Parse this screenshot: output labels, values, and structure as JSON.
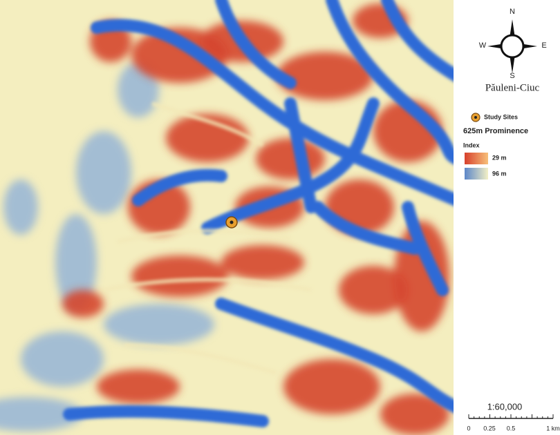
{
  "compass": {
    "north": "N",
    "west": "W",
    "east": "E",
    "south": "S"
  },
  "title": "Păuleni-Ciuc",
  "legend": {
    "site": "Study Sites",
    "heading": "625m Prominence",
    "subheading": "Index",
    "high": "29 m",
    "low": "96 m"
  },
  "scale": {
    "ratio": "1:60,000",
    "labels": [
      "0",
      "0.25",
      "0.5",
      "1 km"
    ]
  }
}
